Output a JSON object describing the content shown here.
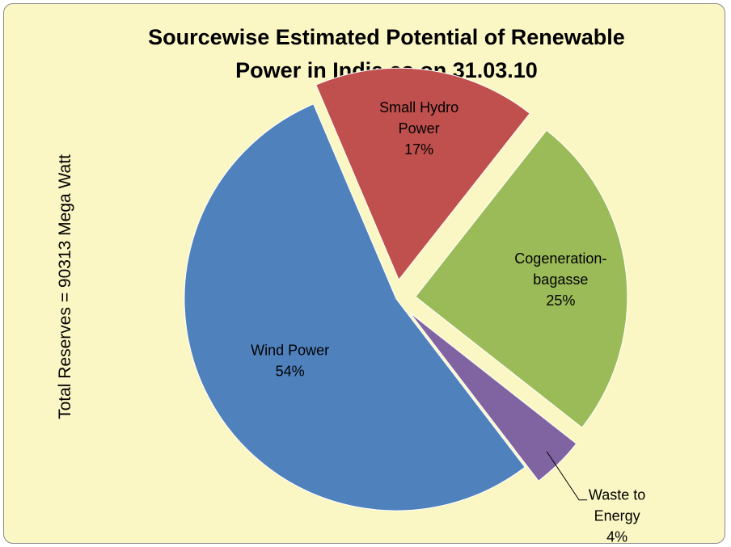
{
  "chart_data": {
    "type": "pie",
    "title_lines": [
      "Sourcewise Estimated Potential of Renewable",
      "Power in India as on 31.03.10"
    ],
    "side_label": "Total Reserves  = 90313 Mega Watt",
    "slices": [
      {
        "name": "Small Hydro Power",
        "label_lines": [
          "Small Hydro",
          "Power"
        ],
        "percent_label": "17%",
        "value": 17,
        "color": "#c0504d"
      },
      {
        "name": "Cogeneration-bagasse",
        "label_lines": [
          "Cogeneration-",
          "bagasse"
        ],
        "percent_label": "25%",
        "value": 25,
        "color": "#9bbb59"
      },
      {
        "name": "Waste to Energy",
        "label_lines": [
          "Waste to",
          "Energy"
        ],
        "percent_label": "4%",
        "value": 4,
        "color": "#8064a2"
      },
      {
        "name": "Wind Power",
        "label_lines": [
          "Wind Power"
        ],
        "percent_label": "54%",
        "value": 54,
        "color": "#4f81bd"
      }
    ],
    "background": "#fbf7c4"
  }
}
